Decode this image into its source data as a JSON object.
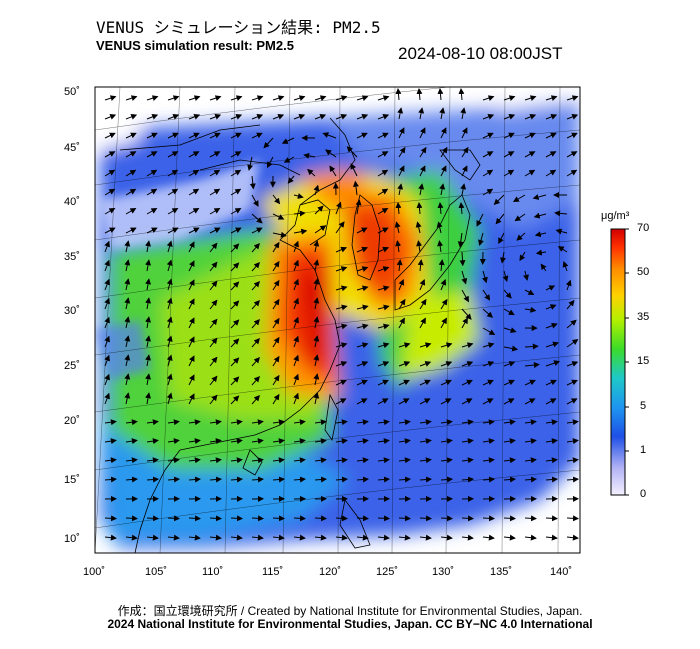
{
  "title_jp": "VENUS シミュレーション結果: PM2.5",
  "title_en": "VENUS simulation result: PM2.5",
  "timestamp": "2024-08-10 08:00JST",
  "lat_ticks": [
    "50˚",
    "45˚",
    "40˚",
    "35˚",
    "30˚",
    "25˚",
    "20˚",
    "15˚",
    "10˚"
  ],
  "lon_ticks": [
    "100˚",
    "105˚",
    "110˚",
    "115˚",
    "120˚",
    "125˚",
    "130˚",
    "135˚",
    "140˚"
  ],
  "colorbar": {
    "unit": "μg/m³",
    "ticks": [
      "70",
      "50",
      "35",
      "15",
      "5",
      "1",
      "0"
    ],
    "colors": [
      "#f5f0ff",
      "#8080f0",
      "#1e50e6",
      "#1ec8dc",
      "#50dc28",
      "#c8f000",
      "#ffd200",
      "#ff8c00",
      "#ff3200",
      "#d20000"
    ]
  },
  "footer_credit": "作成：国立環境研究所 / Created by National Institute for Environmental Studies, Japan.",
  "footer_license": "2024 National Institute for Environmental Studies, Japan. CC BY−NC 4.0 International"
}
